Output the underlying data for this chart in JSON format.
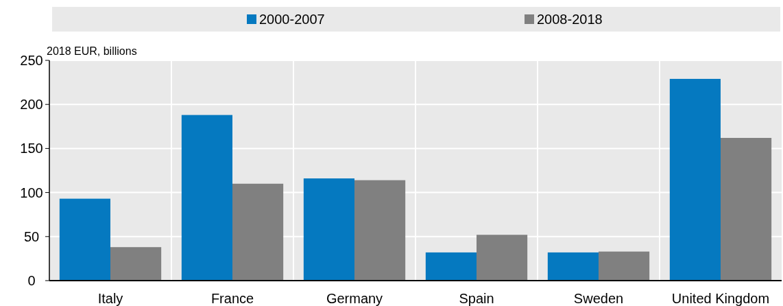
{
  "chart_data": {
    "type": "bar",
    "ylabel": "2018 EUR, billions",
    "categories": [
      "Italy",
      "France",
      "Germany",
      "Spain",
      "Sweden",
      "United Kingdom"
    ],
    "series": [
      {
        "name": "2000-2007",
        "color": "#0579c0",
        "values": [
          93,
          188,
          116,
          32,
          32,
          229
        ]
      },
      {
        "name": "2008-2018",
        "color": "#808080",
        "values": [
          38,
          110,
          114,
          52,
          33,
          162
        ]
      }
    ],
    "ylim": [
      0,
      250
    ],
    "yticks": [
      0,
      50,
      100,
      150,
      200,
      250
    ],
    "grid": true,
    "legend": "top"
  }
}
